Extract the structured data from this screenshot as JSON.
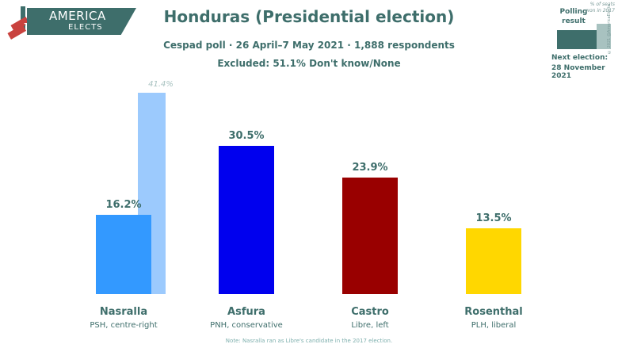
{
  "logo": {
    "line1": "AMERICA",
    "line2": "ELECTS"
  },
  "header": {
    "title": "Honduras (Presidential election)",
    "subtitle": "Cespad poll · 26 April–7 May 2021 · 1,888 respondents",
    "excluded": "Excluded: 51.1% Don't know/None"
  },
  "legend": {
    "polling": "Polling result",
    "seats": "% of seats won in 2017",
    "copyright": "© 2021 @AmericaElects",
    "next_label": "Next election:",
    "next_date": "28 November 2021"
  },
  "colors": {
    "primary": "#3e6e6b",
    "seats_bar": "#9ccafd"
  },
  "chart_data": {
    "type": "bar",
    "title": "Honduras (Presidential election)",
    "categories": [
      "Nasralla",
      "Asfura",
      "Castro",
      "Rosenthal"
    ],
    "parties": [
      "PSH, centre-right",
      "PNH, conservative",
      "Libre, left",
      "PLH, liberal"
    ],
    "values": [
      16.2,
      30.5,
      23.9,
      13.5
    ],
    "value_labels": [
      "16.2%",
      "30.5%",
      "23.9%",
      "13.5%"
    ],
    "bar_colors": [
      "#3399ff",
      "#0000ee",
      "#990000",
      "#ffd700"
    ],
    "secondary": {
      "category": "Nasralla",
      "value": 41.4,
      "label": "41.4%"
    },
    "ylim": [
      0,
      42
    ]
  },
  "note": "Note: Nasralla ran as Libre's candidate in the 2017 election."
}
